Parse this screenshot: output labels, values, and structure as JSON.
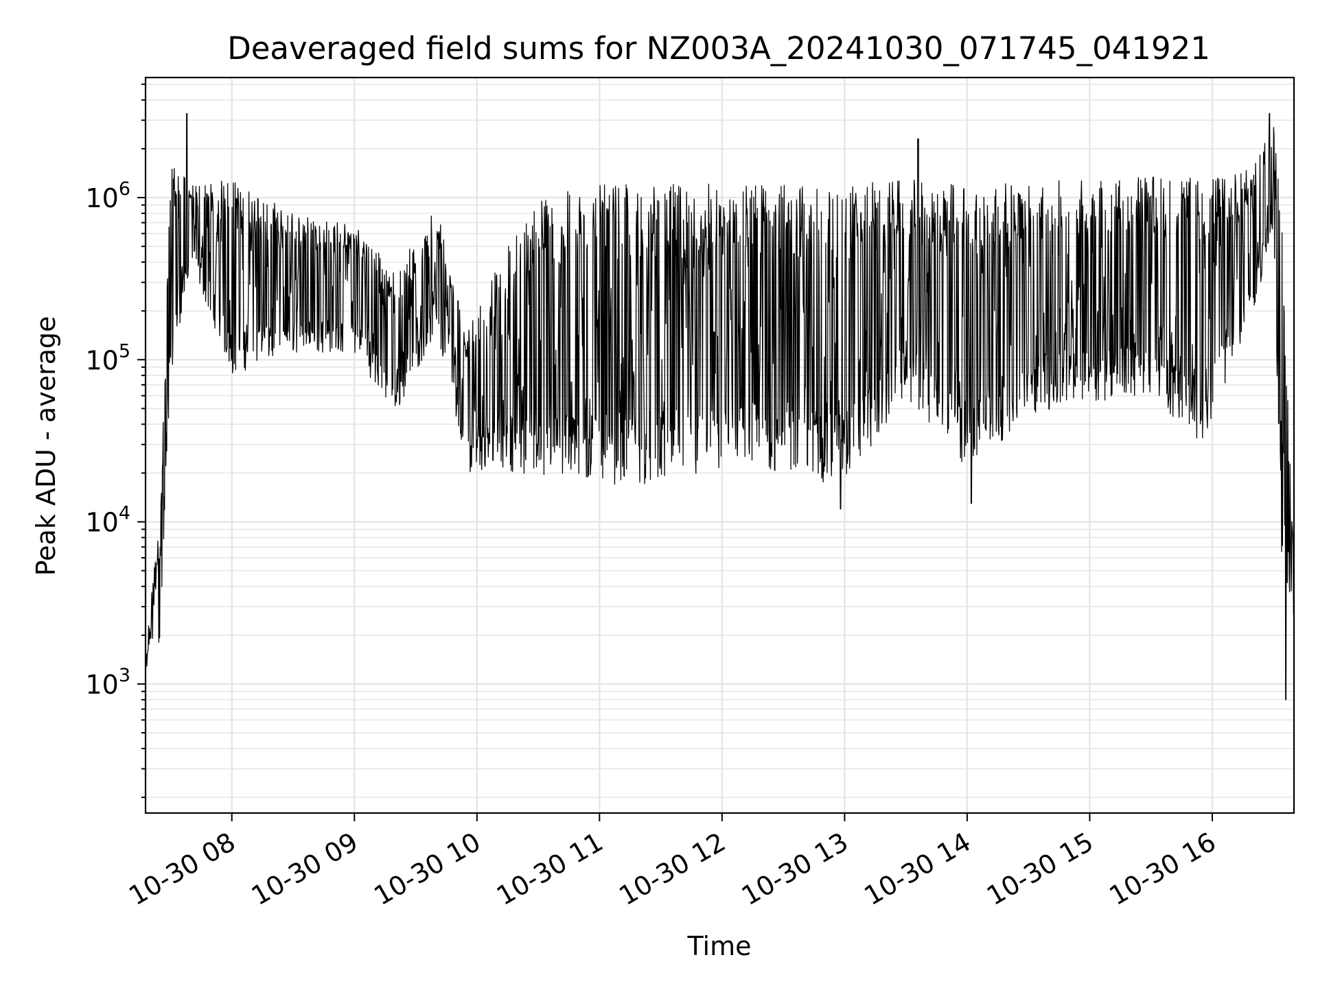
{
  "chart_data": {
    "type": "line",
    "title": "Deaveraged field sums for NZ003A_20241030_071745_041921",
    "xlabel": "Time",
    "ylabel": "Peak ADU - average",
    "y_scale": "log",
    "ylim": [
      160,
      5500000
    ],
    "xlim": [
      "2024-10-30T07:17:45",
      "2024-10-30T16:40:00"
    ],
    "grid": true,
    "x_ticks": [
      {
        "value": "2024-10-30T08:00:00",
        "label": "10-30 08"
      },
      {
        "value": "2024-10-30T09:00:00",
        "label": "10-30 09"
      },
      {
        "value": "2024-10-30T10:00:00",
        "label": "10-30 10"
      },
      {
        "value": "2024-10-30T11:00:00",
        "label": "10-30 11"
      },
      {
        "value": "2024-10-30T12:00:00",
        "label": "10-30 12"
      },
      {
        "value": "2024-10-30T13:00:00",
        "label": "10-30 13"
      },
      {
        "value": "2024-10-30T14:00:00",
        "label": "10-30 14"
      },
      {
        "value": "2024-10-30T15:00:00",
        "label": "10-30 15"
      },
      {
        "value": "2024-10-30T16:00:00",
        "label": "10-30 16"
      }
    ],
    "y_ticks": [
      {
        "value": 1000,
        "base": "10",
        "exp": "3"
      },
      {
        "value": 10000,
        "base": "10",
        "exp": "4"
      },
      {
        "value": 100000,
        "base": "10",
        "exp": "5"
      },
      {
        "value": 1000000,
        "base": "10",
        "exp": "6"
      }
    ],
    "series": [
      {
        "color": "#000000",
        "envelope": [
          {
            "t": "2024-10-30T07:17:45",
            "lo": 1000,
            "hi": 1300
          },
          {
            "t": "2024-10-30T07:20:00",
            "lo": 1800,
            "hi": 3500
          },
          {
            "t": "2024-10-30T07:25:00",
            "lo": 1700,
            "hi": 10000
          },
          {
            "t": "2024-10-30T07:30:00",
            "lo": 80000,
            "hi": 1700000
          },
          {
            "t": "2024-10-30T07:40:00",
            "lo": 400000,
            "hi": 1200000
          },
          {
            "t": "2024-10-30T08:00:00",
            "lo": 80000,
            "hi": 1300000
          },
          {
            "t": "2024-10-30T08:30:00",
            "lo": 110000,
            "hi": 800000
          },
          {
            "t": "2024-10-30T09:00:00",
            "lo": 110000,
            "hi": 700000
          },
          {
            "t": "2024-10-30T09:20:00",
            "lo": 45000,
            "hi": 350000
          },
          {
            "t": "2024-10-30T09:40:00",
            "lo": 150000,
            "hi": 900000
          },
          {
            "t": "2024-10-30T09:55:00",
            "lo": 20000,
            "hi": 150000
          },
          {
            "t": "2024-10-30T10:10:00",
            "lo": 22000,
            "hi": 400000
          },
          {
            "t": "2024-10-30T10:30:00",
            "lo": 18000,
            "hi": 1000000
          },
          {
            "t": "2024-10-30T11:00:00",
            "lo": 17000,
            "hi": 1200000
          },
          {
            "t": "2024-10-30T11:30:00",
            "lo": 17000,
            "hi": 1200000
          },
          {
            "t": "2024-10-30T12:00:00",
            "lo": 19000,
            "hi": 1250000
          },
          {
            "t": "2024-10-30T12:30:00",
            "lo": 20000,
            "hi": 1200000
          },
          {
            "t": "2024-10-30T13:00:00",
            "lo": 16000,
            "hi": 1200000
          },
          {
            "t": "2024-10-30T13:30:00",
            "lo": 60000,
            "hi": 1300000
          },
          {
            "t": "2024-10-30T14:00:00",
            "lo": 20000,
            "hi": 1200000
          },
          {
            "t": "2024-10-30T14:30:00",
            "lo": 45000,
            "hi": 1250000
          },
          {
            "t": "2024-10-30T15:00:00",
            "lo": 55000,
            "hi": 1300000
          },
          {
            "t": "2024-10-30T15:30:00",
            "lo": 60000,
            "hi": 1400000
          },
          {
            "t": "2024-10-30T15:55:00",
            "lo": 30000,
            "hi": 1300000
          },
          {
            "t": "2024-10-30T16:20:00",
            "lo": 200000,
            "hi": 1500000
          },
          {
            "t": "2024-10-30T16:30:00",
            "lo": 600000,
            "hi": 3000000
          },
          {
            "t": "2024-10-30T16:34:00",
            "lo": 5000,
            "hi": 700000
          },
          {
            "t": "2024-10-30T16:40:00",
            "lo": 2500,
            "hi": 5000
          }
        ],
        "spikes": [
          {
            "t": "2024-10-30T07:38:00",
            "y": 3300000
          },
          {
            "t": "2024-10-30T13:36:00",
            "y": 2300000
          },
          {
            "t": "2024-10-30T16:28:00",
            "y": 3300000
          },
          {
            "t": "2024-10-30T14:02:00",
            "y": 13000
          },
          {
            "t": "2024-10-30T12:58:00",
            "y": 12000
          },
          {
            "t": "2024-10-30T16:36:00",
            "y": 800
          }
        ]
      }
    ]
  }
}
